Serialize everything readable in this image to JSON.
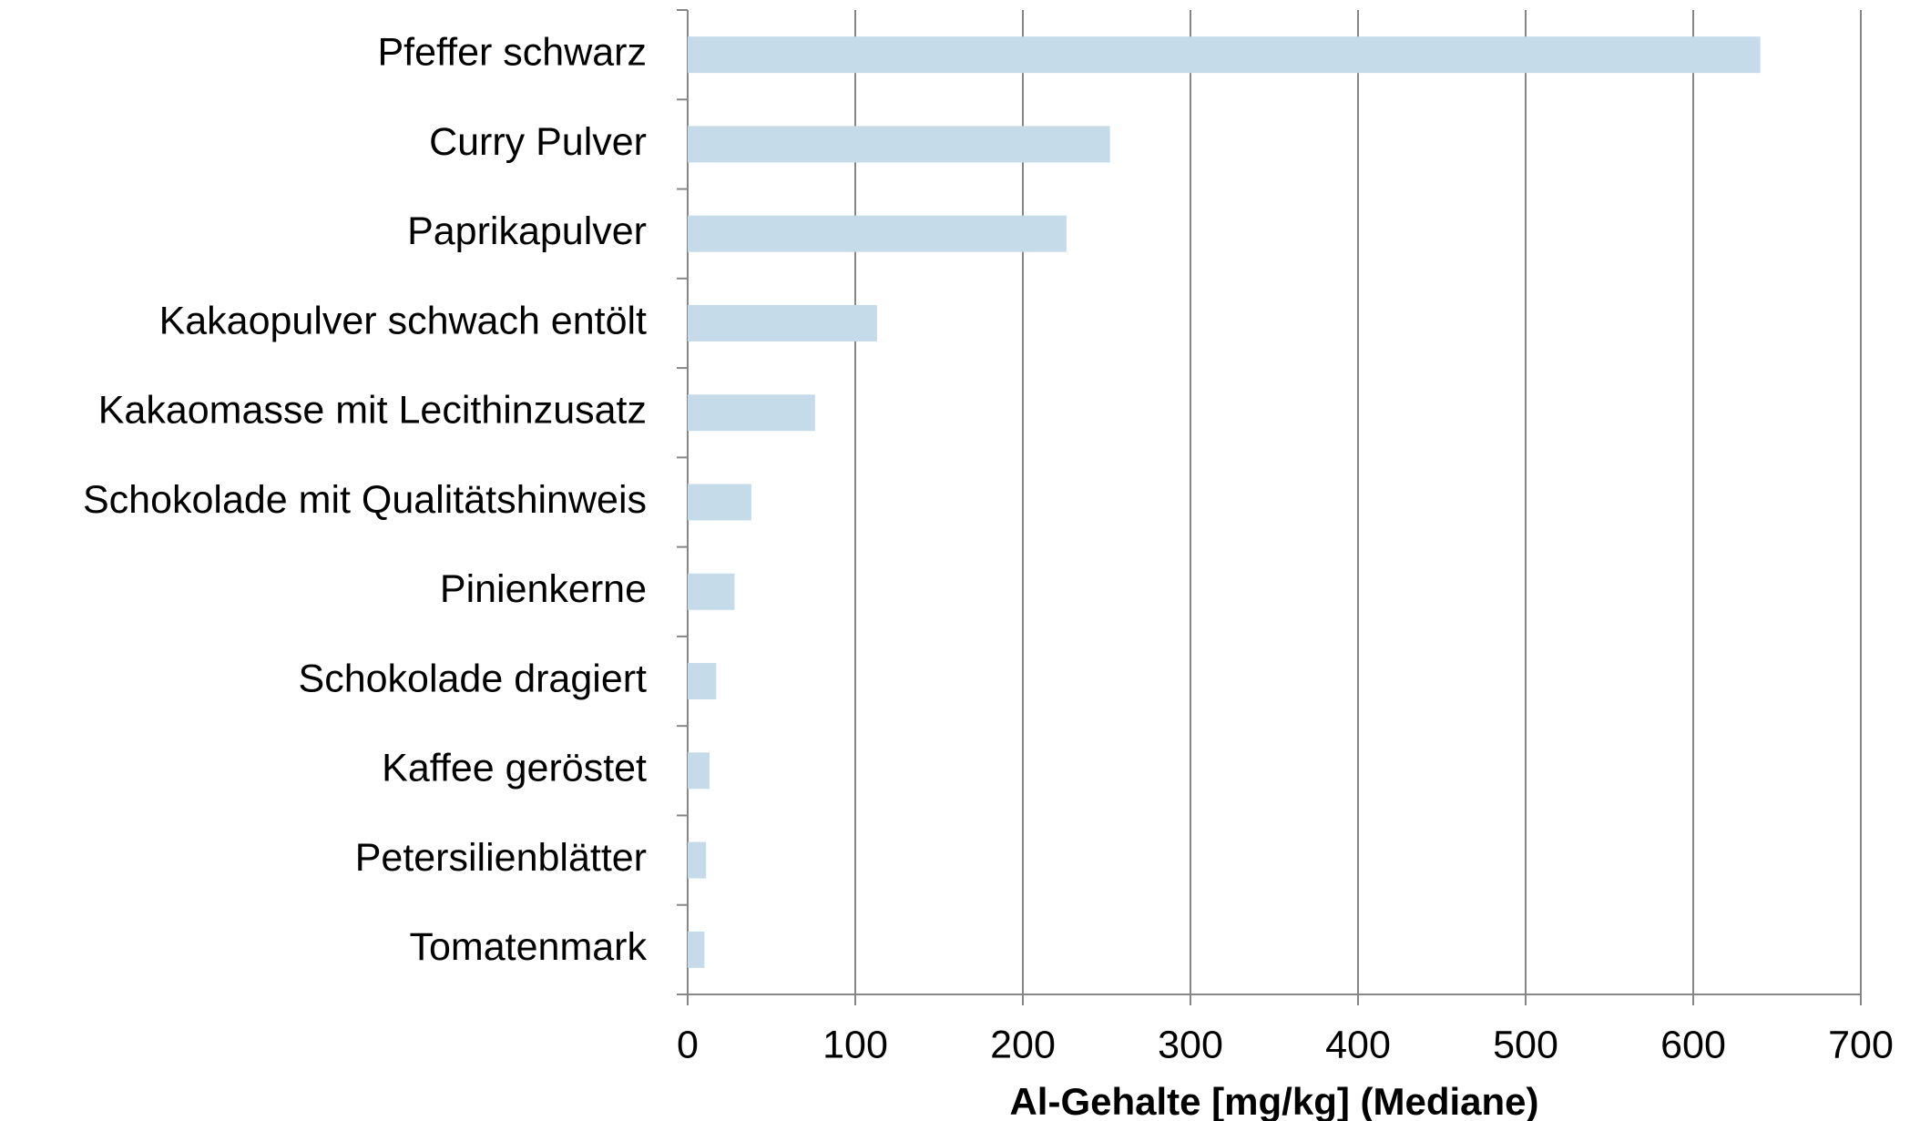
{
  "chart_data": {
    "type": "bar",
    "orientation": "horizontal",
    "x_label": "Al-Gehalte [mg/kg] (Mediane)",
    "categories": [
      "Pfeffer schwarz",
      "Curry Pulver",
      "Paprikapulver",
      "Kakaopulver schwach entölt",
      "Kakaomasse mit Lecithinzusatz",
      "Schokolade mit Qualitätshinweis",
      "Pinienkerne",
      "Schokolade dragiert",
      "Kaffee geröstet",
      "Petersilienblätter",
      "Tomatenmark"
    ],
    "values": [
      640,
      252,
      226,
      113,
      76,
      38,
      28,
      17,
      13,
      11,
      10
    ],
    "color": "#c5dbe9",
    "xlim": [
      0,
      700
    ],
    "xticks": [
      0,
      100,
      200,
      300,
      400,
      500,
      600,
      700
    ],
    "grid": true
  }
}
